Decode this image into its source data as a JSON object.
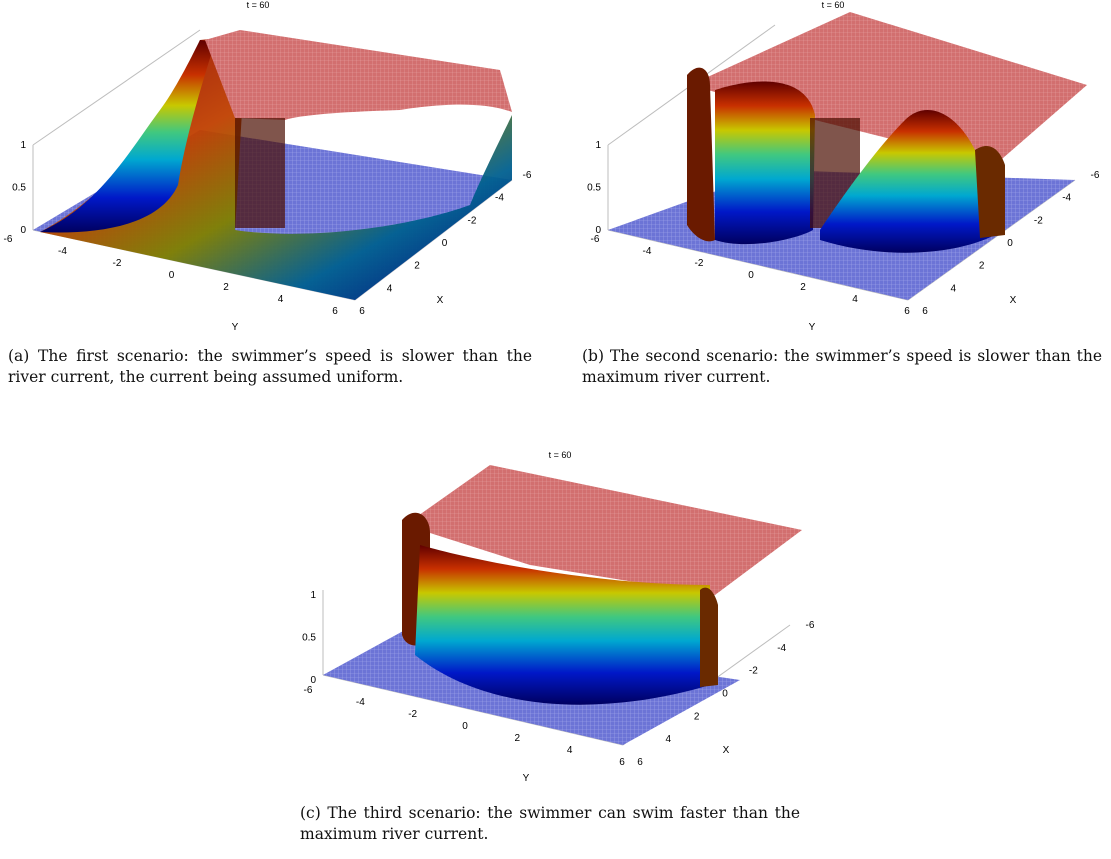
{
  "figure": {
    "panels": [
      {
        "id": "a",
        "plot_title": "t = 60",
        "caption": "(a) The first scenario: the swimmer’s speed is slower than the river current, the current being assumed uniform.",
        "chart_data": {
          "type": "surface3d",
          "title": "t = 60",
          "xlabel": "X",
          "ylabel": "Y",
          "zlabel": "",
          "x_ticks": [
            -6,
            -4,
            -2,
            0,
            2,
            4,
            6
          ],
          "y_ticks": [
            -6,
            -4,
            -2,
            0,
            2,
            4,
            6
          ],
          "z_ticks": [
            0,
            0.5,
            1
          ],
          "xlim": [
            -6,
            6
          ],
          "ylim": [
            -6,
            6
          ],
          "zlim": [
            0,
            1
          ],
          "colormap": "jet"
        }
      },
      {
        "id": "b",
        "plot_title": "t = 60",
        "caption": "(b) The second scenario: the swimmer’s speed is slower than the maximum river current.",
        "chart_data": {
          "type": "surface3d",
          "title": "t = 60",
          "xlabel": "X",
          "ylabel": "Y",
          "zlabel": "",
          "x_ticks": [
            -6,
            -4,
            -2,
            0,
            2,
            4,
            6
          ],
          "y_ticks": [
            -6,
            -4,
            -2,
            0,
            2,
            4,
            6
          ],
          "z_ticks": [
            0,
            0.5,
            1
          ],
          "xlim": [
            -6,
            6
          ],
          "ylim": [
            -6,
            6
          ],
          "zlim": [
            0,
            1
          ],
          "colormap": "jet"
        }
      },
      {
        "id": "c",
        "plot_title": "t = 60",
        "caption": "(c) The third scenario: the swimmer can swim faster than the maximum river current.",
        "chart_data": {
          "type": "surface3d",
          "title": "t = 60",
          "xlabel": "X",
          "ylabel": "Y",
          "zlabel": "",
          "x_ticks": [
            -6,
            -4,
            -2,
            0,
            2,
            4,
            6
          ],
          "y_ticks": [
            -6,
            -4,
            -2,
            0,
            2,
            4,
            6
          ],
          "z_ticks": [
            0,
            0.5,
            1
          ],
          "xlim": [
            -6,
            6
          ],
          "ylim": [
            -6,
            6
          ],
          "zlim": [
            0,
            1
          ],
          "colormap": "jet"
        }
      }
    ],
    "colors": {
      "floor": "#6870d8",
      "plateau": "#cf6b6b",
      "jet_dark_red": "#6b0000",
      "jet_blue": "#0010b0",
      "jet_cyan": "#00b0c8",
      "jet_yellow": "#d8c800"
    }
  }
}
